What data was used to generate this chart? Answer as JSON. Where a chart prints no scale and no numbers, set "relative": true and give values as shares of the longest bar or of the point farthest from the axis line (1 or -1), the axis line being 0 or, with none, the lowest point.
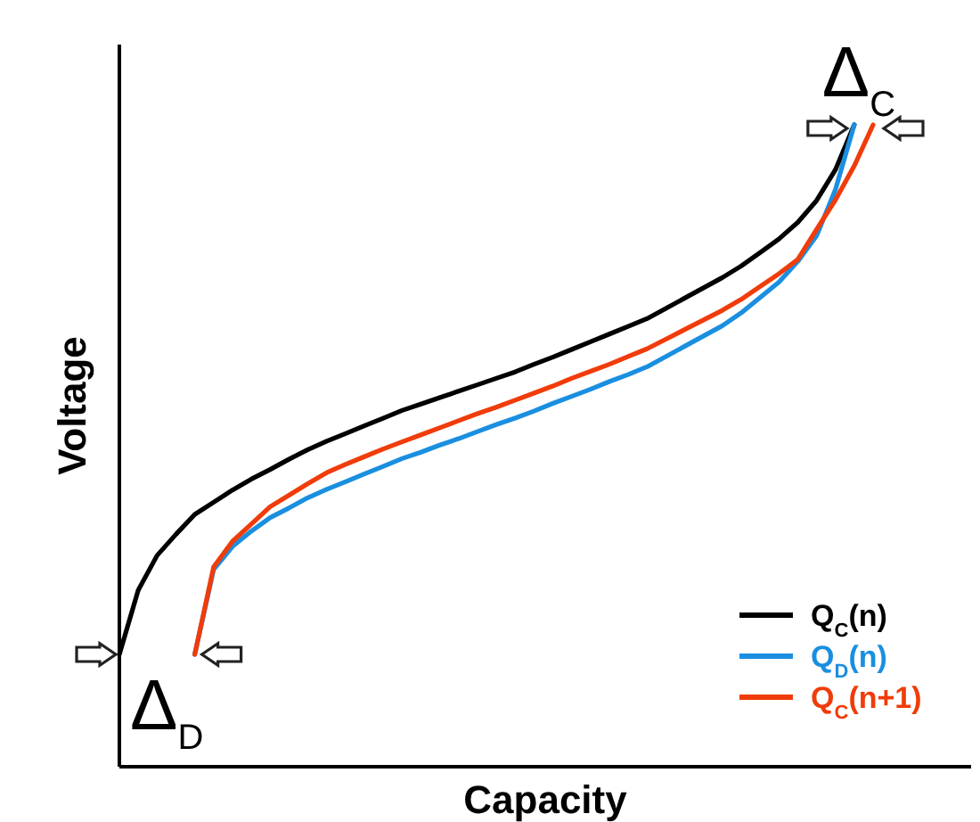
{
  "chart_data": {
    "type": "line",
    "relative": true,
    "xlabel": "Capacity",
    "ylabel": "Voltage",
    "legend": "bottom right",
    "categories": [
      null,
      null,
      null,
      null,
      null,
      null,
      null,
      null,
      null,
      null,
      null,
      null,
      null,
      null,
      null,
      null,
      null,
      null,
      null,
      null,
      null,
      null,
      null,
      null,
      null,
      null,
      null,
      null,
      null,
      null,
      null,
      null,
      null,
      null,
      null,
      null,
      null,
      null,
      null,
      null,
      null
    ],
    "series": [
      {
        "name": "Q$_{C}$(n)",
        "color": "#000000",
        "values": [
          0.175,
          0.275,
          0.329,
          0.362,
          0.393,
          0.412,
          0.431,
          0.448,
          0.463,
          0.479,
          0.494,
          0.507,
          0.519,
          0.531,
          0.543,
          0.555,
          0.565,
          0.575,
          0.585,
          0.595,
          0.605,
          0.615,
          0.627,
          0.638,
          0.65,
          0.662,
          0.674,
          0.686,
          0.698,
          0.714,
          0.73,
          0.746,
          0.762,
          0.78,
          0.801,
          0.822,
          0.848,
          0.882,
          0.93,
          1,
          null
        ]
      },
      {
        "name": "Q$_{D}$(n)",
        "color": "#1a8fe0",
        "values": [
          null,
          null,
          null,
          null,
          0.175,
          0.307,
          0.343,
          0.367,
          0.388,
          0.403,
          0.419,
          0.432,
          0.444,
          0.456,
          0.468,
          0.48,
          0.49,
          0.501,
          0.511,
          0.522,
          0.533,
          0.543,
          0.554,
          0.566,
          0.577,
          0.588,
          0.6,
          0.611,
          0.623,
          0.639,
          0.655,
          0.671,
          0.687,
          0.707,
          0.731,
          0.755,
          0.787,
          0.827,
          0.899,
          1,
          null
        ]
      },
      {
        "name": "Q$_{C}$(n+1)",
        "color": "#f03c0a",
        "values": [
          null,
          null,
          null,
          null,
          0.175,
          0.311,
          0.351,
          0.378,
          0.405,
          0.423,
          0.441,
          0.458,
          0.471,
          0.483,
          0.495,
          0.506,
          0.517,
          0.528,
          0.539,
          0.55,
          0.56,
          0.571,
          0.582,
          0.593,
          0.605,
          0.616,
          0.627,
          0.639,
          0.651,
          0.666,
          0.681,
          0.696,
          0.711,
          0.728,
          0.748,
          0.768,
          0.79,
          0.837,
          0.883,
          0.936,
          1
        ]
      }
    ],
    "annotations": [
      "Δ$_{C}$",
      "Δ$_{D}$"
    ]
  }
}
